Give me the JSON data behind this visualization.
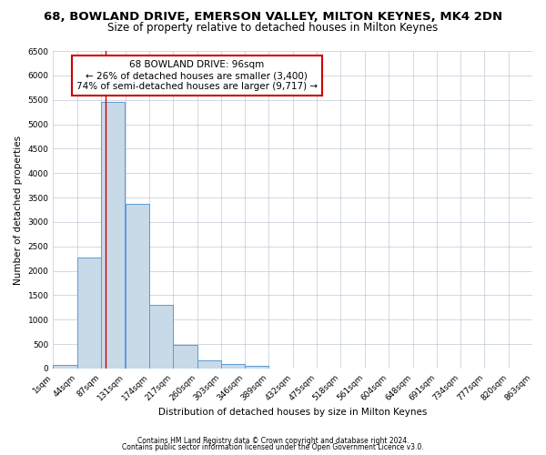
{
  "title": "68, BOWLAND DRIVE, EMERSON VALLEY, MILTON KEYNES, MK4 2DN",
  "subtitle": "Size of property relative to detached houses in Milton Keynes",
  "xlabel": "Distribution of detached houses by size in Milton Keynes",
  "ylabel": "Number of detached properties",
  "bar_left_edges": [
    1,
    44,
    87,
    131,
    174,
    217,
    260,
    303,
    346,
    389,
    432,
    475,
    518,
    561,
    604,
    648,
    691,
    734,
    777,
    820
  ],
  "bar_heights": [
    75,
    2275,
    5450,
    3380,
    1310,
    480,
    175,
    90,
    50,
    0,
    0,
    0,
    0,
    0,
    0,
    0,
    0,
    0,
    0,
    0
  ],
  "bin_width": 43,
  "bar_color": "#c8d9e8",
  "bar_edge_color": "#5b9bd5",
  "x_tick_labels": [
    "1sqm",
    "44sqm",
    "87sqm",
    "131sqm",
    "174sqm",
    "217sqm",
    "260sqm",
    "303sqm",
    "346sqm",
    "389sqm",
    "432sqm",
    "475sqm",
    "518sqm",
    "561sqm",
    "604sqm",
    "648sqm",
    "691sqm",
    "734sqm",
    "777sqm",
    "820sqm",
    "863sqm"
  ],
  "ylim": [
    0,
    6500
  ],
  "yticks": [
    0,
    500,
    1000,
    1500,
    2000,
    2500,
    3000,
    3500,
    4000,
    4500,
    5000,
    5500,
    6000,
    6500
  ],
  "xlim_min": 1,
  "xlim_max": 863,
  "property_line_x": 96,
  "property_line_color": "#cc0000",
  "annotation_title": "68 BOWLAND DRIVE: 96sqm",
  "annotation_line1": "← 26% of detached houses are smaller (3,400)",
  "annotation_line2": "74% of semi-detached houses are larger (9,717) →",
  "annotation_box_color": "#ffffff",
  "annotation_box_edge_color": "#cc0000",
  "footer1": "Contains HM Land Registry data © Crown copyright and database right 2024.",
  "footer2": "Contains public sector information licensed under the Open Government Licence v3.0.",
  "background_color": "#ffffff",
  "grid_color": "#c0c8d8",
  "title_fontsize": 9.5,
  "subtitle_fontsize": 8.5,
  "axis_fontsize": 7.5,
  "tick_fontsize": 6.5,
  "annotation_fontsize": 7.5,
  "footer_fontsize": 5.5
}
